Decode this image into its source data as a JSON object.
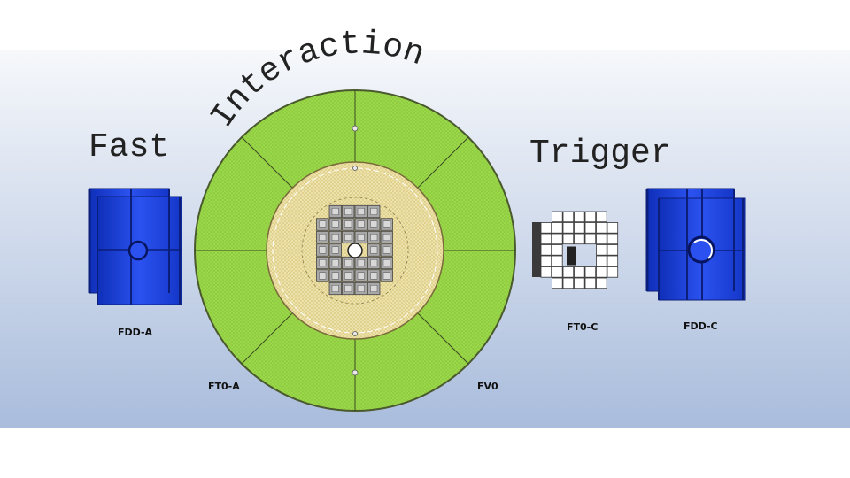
{
  "title": {
    "word1": "Fast",
    "word2": "Interaction",
    "word3": "Trigger"
  },
  "labels": {
    "fdd_a": "FDD-A",
    "ft0_a": "FT0-A",
    "fv0": "FV0",
    "ft0_c": "FT0-C",
    "fdd_c": "FDD-C"
  },
  "colors": {
    "band_top": "#f6f8fb",
    "band_bottom": "#a9bcdc",
    "fv0_outer": "#9ad84a",
    "fv0_inner": "#efe4b0",
    "fdd_blue": "#1a3fd8",
    "ft0_module": "#9a9a9a"
  },
  "icons": [
    "fdd-a-detector-icon",
    "fv0-detector-icon",
    "ft0-a-detector-icon",
    "ft0-c-detector-icon",
    "fdd-c-detector-icon"
  ]
}
